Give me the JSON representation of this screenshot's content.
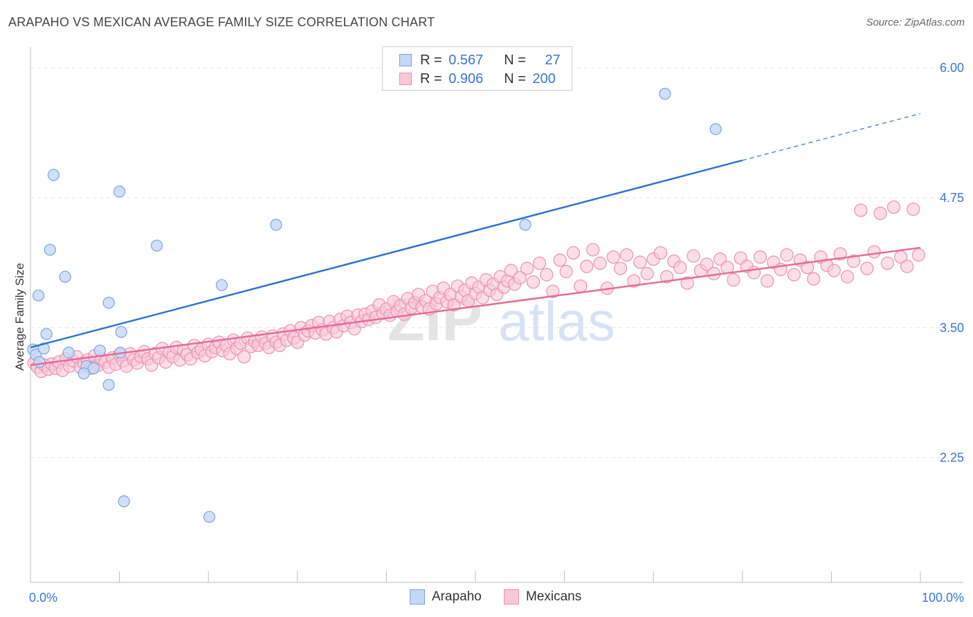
{
  "header": {
    "title": "ARAPAHO VS MEXICAN AVERAGE FAMILY SIZE CORRELATION CHART",
    "source": "Source: ZipAtlas.com"
  },
  "legend": {
    "rows": [
      {
        "r_label": "R = ",
        "r_value": "0.567",
        "n_label": "N = ",
        "n_value": "27"
      },
      {
        "r_label": "R = ",
        "r_value": "0.906",
        "n_label": "N = ",
        "n_value": "200"
      }
    ]
  },
  "watermark": {
    "zip": "ZIP",
    "atlas": "atlas"
  },
  "colors": {
    "arapaho_fill": "#c5d8f5",
    "arapaho_stroke": "#7aa3e0",
    "arapaho_line": "#2f72d0",
    "mexican_fill": "#f9c8d8",
    "mexican_stroke": "#ec8fb0",
    "mexican_line": "#e8699a",
    "axis_label": "#3a76d0",
    "grid": "#e2e2e2"
  },
  "chart_data": {
    "type": "scatter",
    "title": "ARAPAHO VS MEXICAN AVERAGE FAMILY SIZE CORRELATION CHART",
    "xlabel": "",
    "ylabel": "Average Family Size",
    "xlim": [
      0,
      100
    ],
    "ylim": [
      1.05,
      6.2
    ],
    "x_tick_labels": [
      "0.0%",
      "100.0%"
    ],
    "y_ticks": [
      2.25,
      3.5,
      4.75,
      6.0
    ],
    "y_tick_labels": [
      "2.25",
      "3.50",
      "4.75",
      "6.00"
    ],
    "series": [
      {
        "name": "Arapaho",
        "r": 0.567,
        "n": 27,
        "trend": {
          "x0": 0,
          "y0": 3.31,
          "x1": 80,
          "y1": 5.11,
          "dash_to_x": 100,
          "dash_to_y": 5.56
        },
        "points": [
          [
            0.3,
            3.29
          ],
          [
            0.6,
            3.24
          ],
          [
            1.5,
            3.3
          ],
          [
            0.9,
            3.81
          ],
          [
            1.8,
            3.44
          ],
          [
            2.2,
            4.25
          ],
          [
            2.6,
            4.97
          ],
          [
            3.9,
            3.99
          ],
          [
            4.3,
            3.26
          ],
          [
            6.3,
            3.13
          ],
          [
            7.1,
            3.11
          ],
          [
            7.8,
            3.28
          ],
          [
            8.8,
            3.74
          ],
          [
            8.8,
            2.95
          ],
          [
            10.0,
            4.81
          ],
          [
            10.1,
            3.26
          ],
          [
            10.2,
            3.46
          ],
          [
            10.5,
            1.83
          ],
          [
            14.2,
            4.29
          ],
          [
            20.1,
            1.68
          ],
          [
            21.5,
            3.91
          ],
          [
            27.6,
            4.49
          ],
          [
            55.6,
            4.49
          ],
          [
            71.3,
            5.75
          ],
          [
            77.0,
            5.41
          ],
          [
            1.0,
            3.17
          ],
          [
            6.0,
            3.06
          ]
        ]
      },
      {
        "name": "Mexicans",
        "r": 0.906,
        "n": 200,
        "trend": {
          "x0": 0,
          "y0": 3.14,
          "x1": 100,
          "y1": 4.27
        },
        "points": [
          [
            0.4,
            3.16
          ],
          [
            0.8,
            3.12
          ],
          [
            1.2,
            3.08
          ],
          [
            1.6,
            3.14
          ],
          [
            2.0,
            3.1
          ],
          [
            2.4,
            3.15
          ],
          [
            2.8,
            3.11
          ],
          [
            3.2,
            3.17
          ],
          [
            3.6,
            3.09
          ],
          [
            4.0,
            3.2
          ],
          [
            4.4,
            3.13
          ],
          [
            4.8,
            3.18
          ],
          [
            5.2,
            3.22
          ],
          [
            5.6,
            3.12
          ],
          [
            6.0,
            3.16
          ],
          [
            6.4,
            3.19
          ],
          [
            6.8,
            3.11
          ],
          [
            7.2,
            3.23
          ],
          [
            7.6,
            3.14
          ],
          [
            8.0,
            3.2
          ],
          [
            8.4,
            3.17
          ],
          [
            8.8,
            3.12
          ],
          [
            9.2,
            3.21
          ],
          [
            9.6,
            3.15
          ],
          [
            10.0,
            3.24
          ],
          [
            10.4,
            3.18
          ],
          [
            10.8,
            3.13
          ],
          [
            11.2,
            3.25
          ],
          [
            11.6,
            3.19
          ],
          [
            12.0,
            3.16
          ],
          [
            12.4,
            3.22
          ],
          [
            12.8,
            3.27
          ],
          [
            13.2,
            3.2
          ],
          [
            13.6,
            3.14
          ],
          [
            14.0,
            3.25
          ],
          [
            14.4,
            3.21
          ],
          [
            14.8,
            3.3
          ],
          [
            15.2,
            3.17
          ],
          [
            15.6,
            3.26
          ],
          [
            16.0,
            3.22
          ],
          [
            16.4,
            3.31
          ],
          [
            16.8,
            3.19
          ],
          [
            17.2,
            3.28
          ],
          [
            17.6,
            3.24
          ],
          [
            18.0,
            3.2
          ],
          [
            18.4,
            3.33
          ],
          [
            18.8,
            3.26
          ],
          [
            19.2,
            3.29
          ],
          [
            19.6,
            3.23
          ],
          [
            20.0,
            3.34
          ],
          [
            20.4,
            3.27
          ],
          [
            20.8,
            3.31
          ],
          [
            21.2,
            3.36
          ],
          [
            21.6,
            3.28
          ],
          [
            22.0,
            3.33
          ],
          [
            22.4,
            3.25
          ],
          [
            22.8,
            3.38
          ],
          [
            23.2,
            3.3
          ],
          [
            23.6,
            3.35
          ],
          [
            24.0,
            3.22
          ],
          [
            24.4,
            3.4
          ],
          [
            24.8,
            3.32
          ],
          [
            25.2,
            3.37
          ],
          [
            25.6,
            3.33
          ],
          [
            26.0,
            3.41
          ],
          [
            26.4,
            3.35
          ],
          [
            26.8,
            3.31
          ],
          [
            27.2,
            3.42
          ],
          [
            27.6,
            3.36
          ],
          [
            28.0,
            3.33
          ],
          [
            28.4,
            3.44
          ],
          [
            28.8,
            3.38
          ],
          [
            29.2,
            3.47
          ],
          [
            29.6,
            3.4
          ],
          [
            30.0,
            3.36
          ],
          [
            30.4,
            3.5
          ],
          [
            30.8,
            3.43
          ],
          [
            31.2,
            3.47
          ],
          [
            31.6,
            3.52
          ],
          [
            32.0,
            3.45
          ],
          [
            32.4,
            3.55
          ],
          [
            32.8,
            3.48
          ],
          [
            33.2,
            3.44
          ],
          [
            33.6,
            3.56
          ],
          [
            34.0,
            3.5
          ],
          [
            34.4,
            3.46
          ],
          [
            34.8,
            3.58
          ],
          [
            35.2,
            3.52
          ],
          [
            35.6,
            3.61
          ],
          [
            36.0,
            3.55
          ],
          [
            36.4,
            3.49
          ],
          [
            36.8,
            3.62
          ],
          [
            37.2,
            3.56
          ],
          [
            37.6,
            3.63
          ],
          [
            38.0,
            3.58
          ],
          [
            38.4,
            3.66
          ],
          [
            38.8,
            3.6
          ],
          [
            39.2,
            3.72
          ],
          [
            39.6,
            3.64
          ],
          [
            40.0,
            3.68
          ],
          [
            40.4,
            3.62
          ],
          [
            40.8,
            3.75
          ],
          [
            41.2,
            3.66
          ],
          [
            41.6,
            3.71
          ],
          [
            42.0,
            3.63
          ],
          [
            42.4,
            3.78
          ],
          [
            42.8,
            3.69
          ],
          [
            43.2,
            3.74
          ],
          [
            43.6,
            3.82
          ],
          [
            44.0,
            3.7
          ],
          [
            44.4,
            3.76
          ],
          [
            44.8,
            3.68
          ],
          [
            45.2,
            3.85
          ],
          [
            45.6,
            3.73
          ],
          [
            46.0,
            3.79
          ],
          [
            46.4,
            3.88
          ],
          [
            46.8,
            3.75
          ],
          [
            47.2,
            3.82
          ],
          [
            47.6,
            3.72
          ],
          [
            48.0,
            3.9
          ],
          [
            48.4,
            3.8
          ],
          [
            48.8,
            3.86
          ],
          [
            49.2,
            3.76
          ],
          [
            49.6,
            3.93
          ],
          [
            50.0,
            3.83
          ],
          [
            50.4,
            3.89
          ],
          [
            50.8,
            3.79
          ],
          [
            51.2,
            3.96
          ],
          [
            51.6,
            3.86
          ],
          [
            52.0,
            3.92
          ],
          [
            52.4,
            3.82
          ],
          [
            52.8,
            3.99
          ],
          [
            53.2,
            3.89
          ],
          [
            53.6,
            3.95
          ],
          [
            54.0,
            4.05
          ],
          [
            54.4,
            3.92
          ],
          [
            55.0,
            3.98
          ],
          [
            55.8,
            4.07
          ],
          [
            56.5,
            3.94
          ],
          [
            57.2,
            4.12
          ],
          [
            58.0,
            4.01
          ],
          [
            58.7,
            3.85
          ],
          [
            59.5,
            4.15
          ],
          [
            60.2,
            4.04
          ],
          [
            61.0,
            4.22
          ],
          [
            61.8,
            3.9
          ],
          [
            62.5,
            4.09
          ],
          [
            63.2,
            4.25
          ],
          [
            64.0,
            4.12
          ],
          [
            64.8,
            3.88
          ],
          [
            65.5,
            4.18
          ],
          [
            66.3,
            4.07
          ],
          [
            67.0,
            4.2
          ],
          [
            67.8,
            3.95
          ],
          [
            68.5,
            4.13
          ],
          [
            69.3,
            4.02
          ],
          [
            70.0,
            4.16
          ],
          [
            70.8,
            4.22
          ],
          [
            71.5,
            3.99
          ],
          [
            72.3,
            4.14
          ],
          [
            73.0,
            4.08
          ],
          [
            73.8,
            3.93
          ],
          [
            74.5,
            4.19
          ],
          [
            75.3,
            4.05
          ],
          [
            76.0,
            4.11
          ],
          [
            76.8,
            4.02
          ],
          [
            77.5,
            4.16
          ],
          [
            78.3,
            4.08
          ],
          [
            79.0,
            3.96
          ],
          [
            79.8,
            4.17
          ],
          [
            80.5,
            4.09
          ],
          [
            81.3,
            4.03
          ],
          [
            82.0,
            4.18
          ],
          [
            82.8,
            3.95
          ],
          [
            83.5,
            4.13
          ],
          [
            84.3,
            4.06
          ],
          [
            85.0,
            4.2
          ],
          [
            85.8,
            4.01
          ],
          [
            86.5,
            4.15
          ],
          [
            87.3,
            4.08
          ],
          [
            88.0,
            3.97
          ],
          [
            88.8,
            4.18
          ],
          [
            89.5,
            4.1
          ],
          [
            90.3,
            4.05
          ],
          [
            91.0,
            4.21
          ],
          [
            91.8,
            3.99
          ],
          [
            92.5,
            4.14
          ],
          [
            93.3,
            4.63
          ],
          [
            94.0,
            4.07
          ],
          [
            94.8,
            4.23
          ],
          [
            95.5,
            4.6
          ],
          [
            96.3,
            4.12
          ],
          [
            97.0,
            4.66
          ],
          [
            97.8,
            4.18
          ],
          [
            98.5,
            4.09
          ],
          [
            99.2,
            4.64
          ],
          [
            99.8,
            4.2
          ]
        ]
      }
    ]
  }
}
